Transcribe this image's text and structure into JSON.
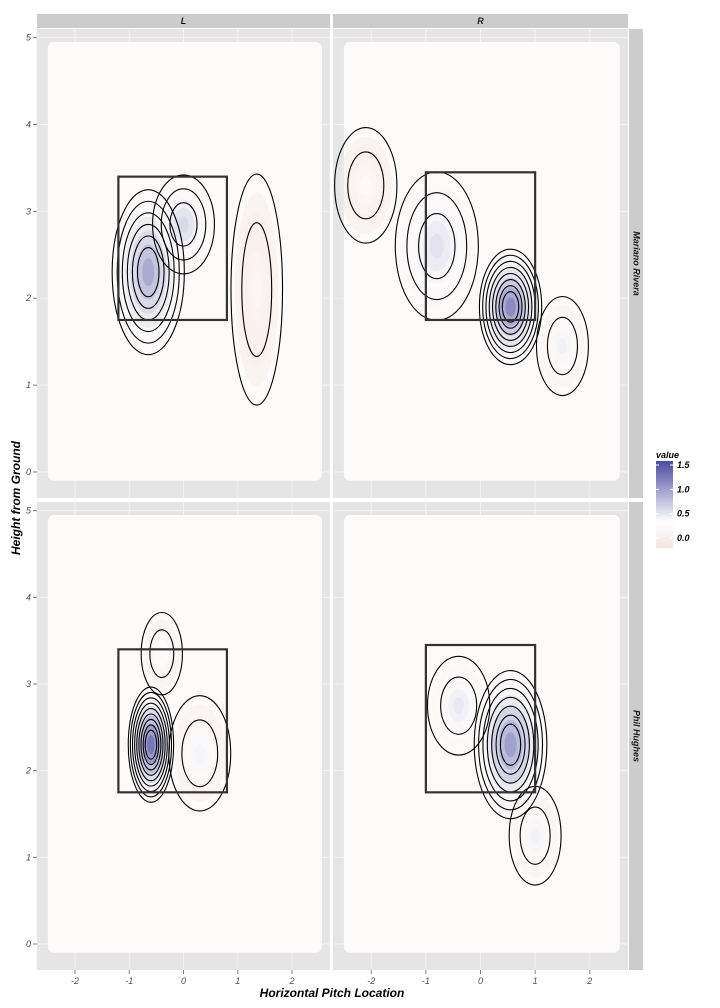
{
  "chart_data": {
    "type": "heatmap",
    "title": "",
    "xlabel": "Horizontal Pitch Location",
    "ylabel": "Height from Ground",
    "xlim": [
      -2.7,
      2.7
    ],
    "ylim": [
      -0.3,
      5.1
    ],
    "x_ticks": [
      -2,
      -1,
      0,
      1,
      2
    ],
    "y_ticks": [
      0,
      1,
      2,
      3,
      4,
      5
    ],
    "facet_columns": [
      "L",
      "R"
    ],
    "facet_rows": [
      "Mariano Rivera",
      "Phil Hughes"
    ],
    "grid": true,
    "legend": {
      "title": "value",
      "placement": "right",
      "breaks": [
        0.0,
        0.5,
        1.0,
        1.5
      ],
      "break_labels": [
        "0.0",
        "0.5",
        "1.0",
        "1.5"
      ],
      "low_color": "#f2e6e0",
      "mid_color": "#ffffff",
      "high_color": "#4b4ba0"
    },
    "strike_zone": {
      "Mariano Rivera|L": {
        "x": [
          -1.2,
          0.8
        ],
        "y": [
          1.75,
          3.4
        ]
      },
      "Mariano Rivera|R": {
        "x": [
          -1.0,
          1.0
        ],
        "y": [
          1.75,
          3.45
        ]
      },
      "Phil Hughes|L": {
        "x": [
          -1.2,
          0.8
        ],
        "y": [
          1.75,
          3.4
        ]
      },
      "Phil Hughes|R": {
        "x": [
          -1.0,
          1.0
        ],
        "y": [
          1.75,
          3.45
        ]
      }
    },
    "density_peaks": [
      {
        "row": "Mariano Rivera",
        "col": "L",
        "x": -0.65,
        "y": 2.3,
        "peak": 1.0,
        "sx": 0.35,
        "sy": 0.5
      },
      {
        "row": "Mariano Rivera",
        "col": "L",
        "x": 0.0,
        "y": 2.85,
        "peak": 0.55,
        "sx": 0.3,
        "sy": 0.3
      },
      {
        "row": "Mariano Rivera",
        "col": "L",
        "x": 1.35,
        "y": 2.1,
        "peak": 0.12,
        "sx": 0.25,
        "sy": 0.7
      },
      {
        "row": "Mariano Rivera",
        "col": "R",
        "x": 0.55,
        "y": 1.9,
        "peak": 1.3,
        "sx": 0.3,
        "sy": 0.35
      },
      {
        "row": "Mariano Rivera",
        "col": "R",
        "x": -0.8,
        "y": 2.6,
        "peak": 0.45,
        "sx": 0.4,
        "sy": 0.45
      },
      {
        "row": "Mariano Rivera",
        "col": "R",
        "x": 1.5,
        "y": 1.45,
        "peak": 0.3,
        "sx": 0.25,
        "sy": 0.3
      },
      {
        "row": "Mariano Rivera",
        "col": "R",
        "x": -2.1,
        "y": 3.3,
        "peak": 0.15,
        "sx": 0.3,
        "sy": 0.35
      },
      {
        "row": "Phil Hughes",
        "col": "L",
        "x": -0.6,
        "y": 2.3,
        "peak": 1.5,
        "sx": 0.22,
        "sy": 0.35
      },
      {
        "row": "Phil Hughes",
        "col": "L",
        "x": 0.3,
        "y": 2.2,
        "peak": 0.25,
        "sx": 0.3,
        "sy": 0.35
      },
      {
        "row": "Phil Hughes",
        "col": "L",
        "x": -0.4,
        "y": 3.35,
        "peak": 0.2,
        "sx": 0.2,
        "sy": 0.25
      },
      {
        "row": "Phil Hughes",
        "col": "R",
        "x": 0.55,
        "y": 2.3,
        "peak": 1.1,
        "sx": 0.35,
        "sy": 0.45
      },
      {
        "row": "Phil Hughes",
        "col": "R",
        "x": -0.4,
        "y": 2.75,
        "peak": 0.4,
        "sx": 0.3,
        "sy": 0.3
      },
      {
        "row": "Phil Hughes",
        "col": "R",
        "x": 1.0,
        "y": 1.25,
        "peak": 0.3,
        "sx": 0.25,
        "sy": 0.3
      }
    ]
  }
}
